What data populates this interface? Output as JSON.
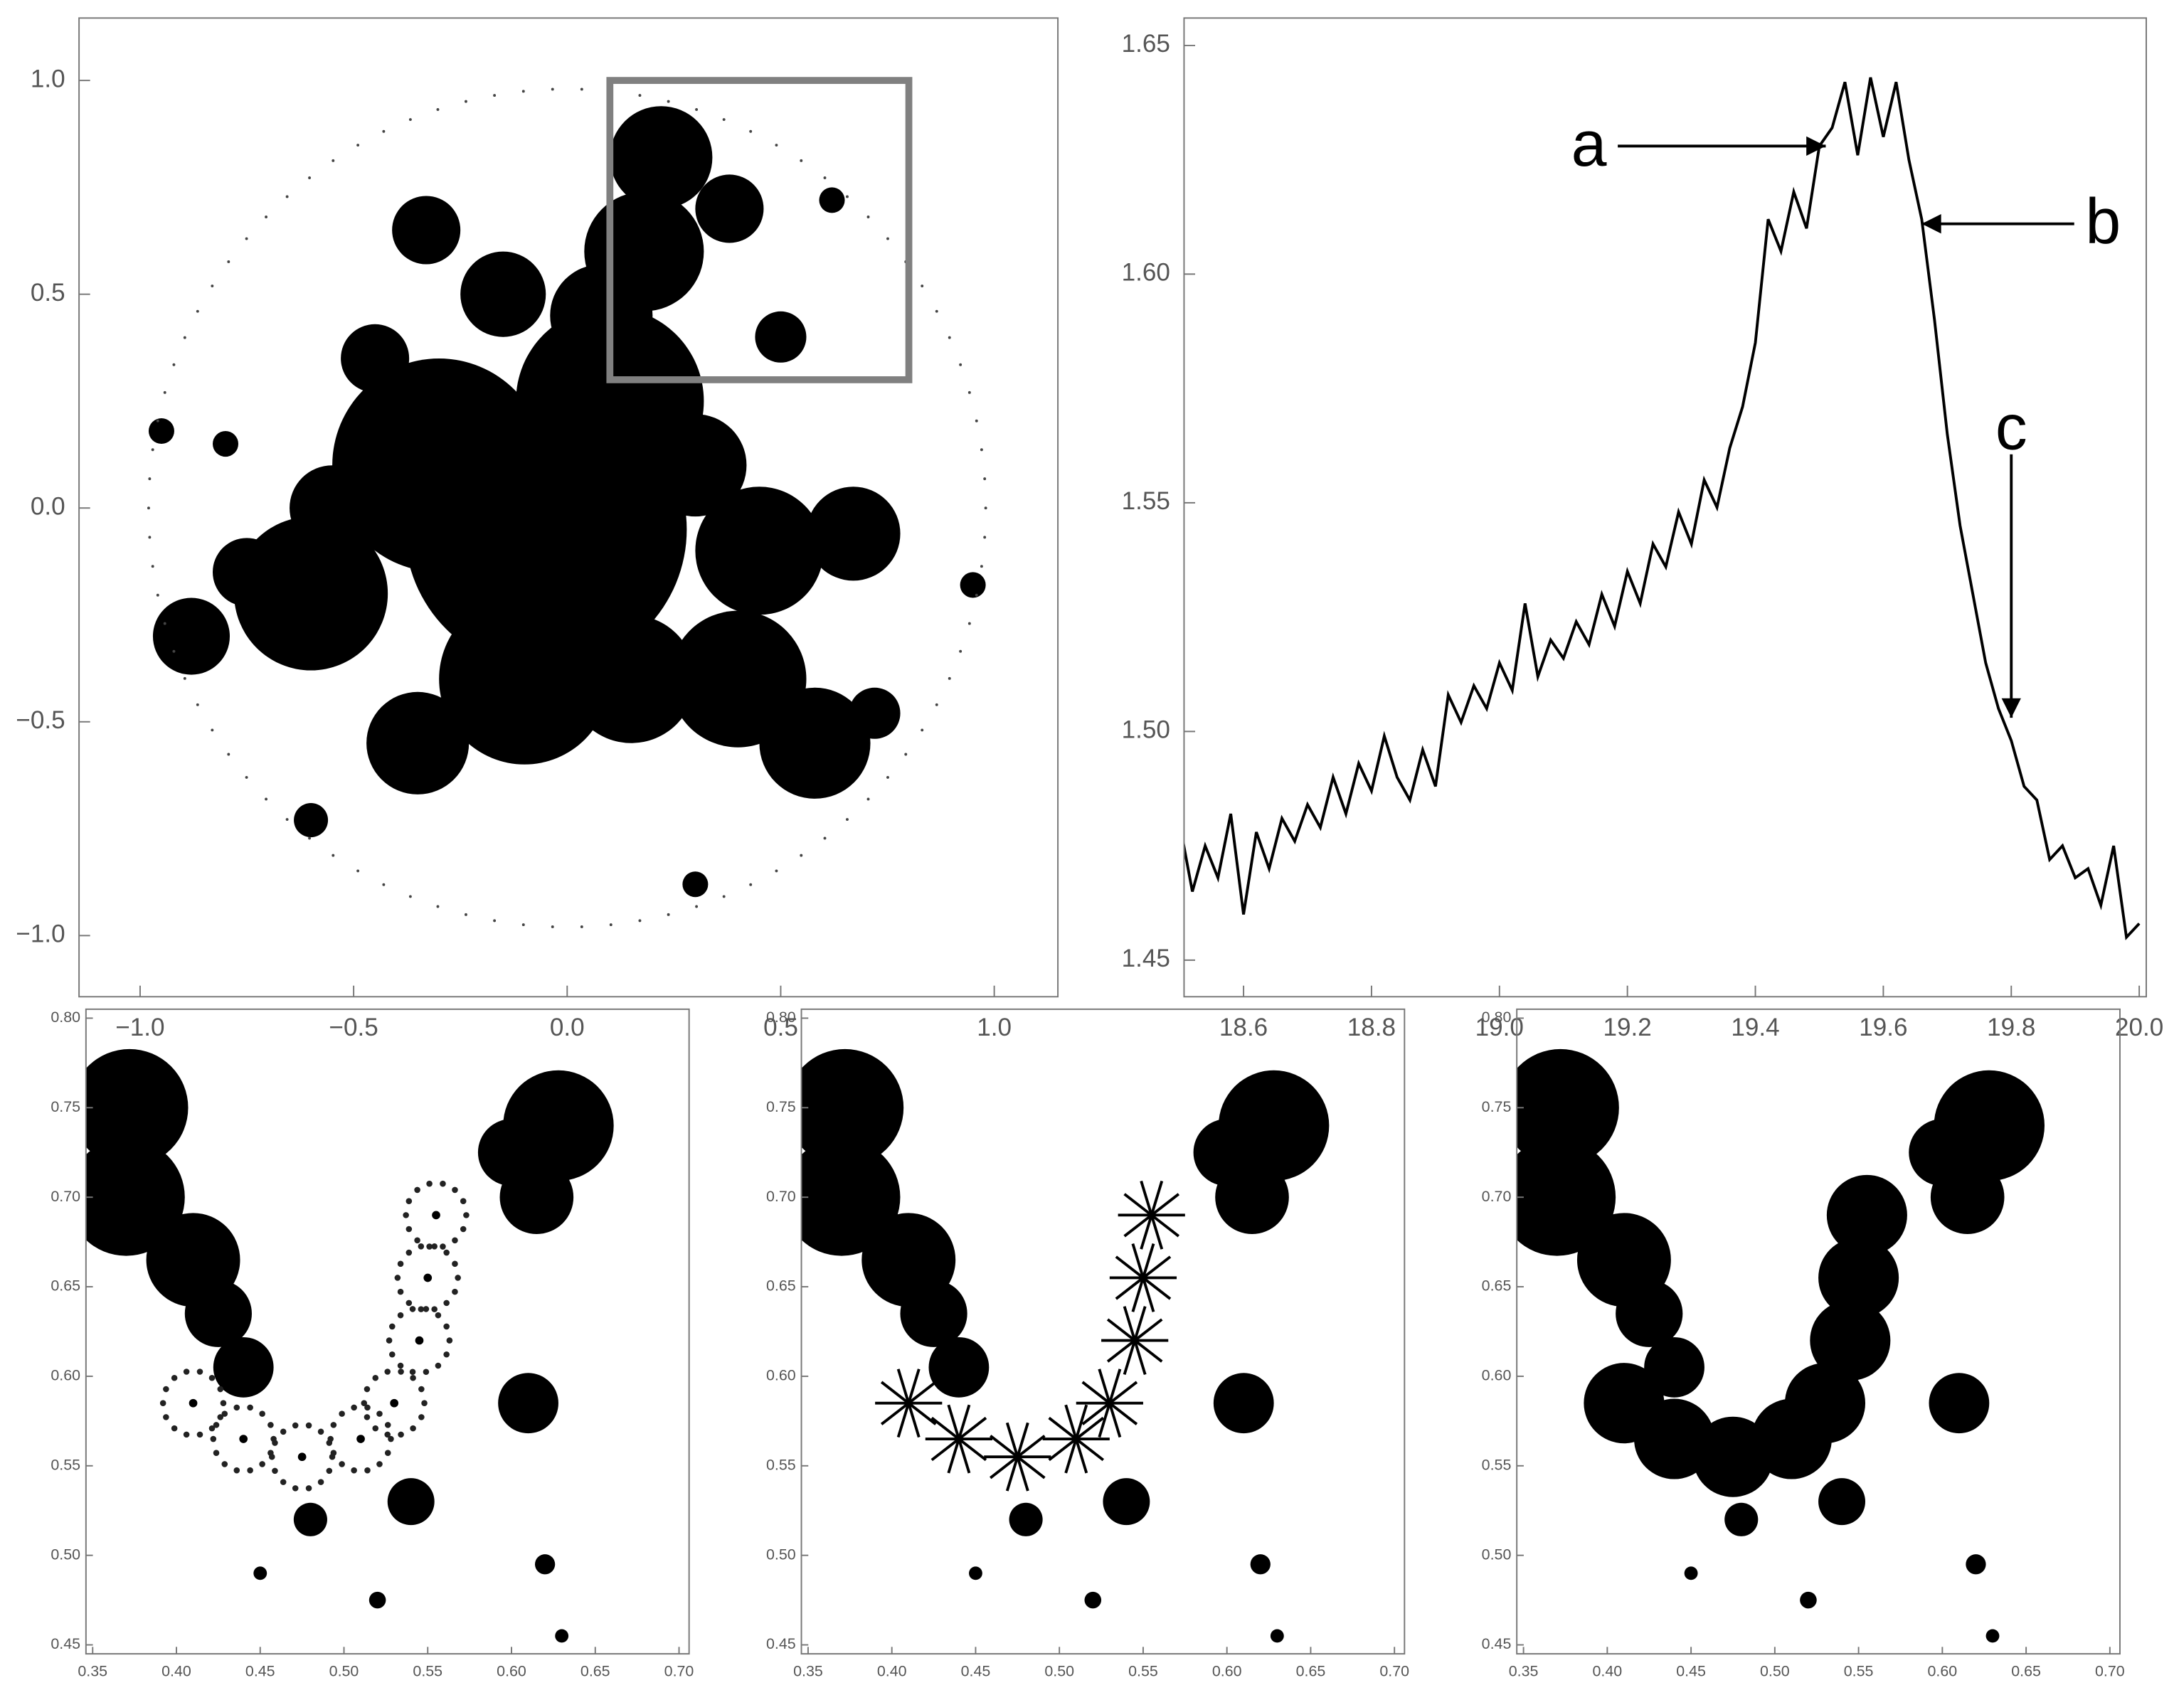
{
  "chart_data": [
    {
      "type": "image",
      "xlim": [
        -1.143,
        1.149
      ],
      "ylim": [
        -1.143,
        1.146
      ],
      "xticks": [
        {
          "value": -1.0,
          "label": "−1.0"
        },
        {
          "value": -0.5,
          "label": "−0.5"
        },
        {
          "value": 0,
          "label": "0.0"
        },
        0.5,
        {
          "value": 1.0,
          "label": "1.0"
        }
      ],
      "yticks": [
        {
          "value": -1.0,
          "label": "−1.0"
        },
        {
          "value": -0.5,
          "label": "−0.5"
        },
        {
          "value": 0,
          "label": "0.0"
        },
        0.5,
        {
          "value": 1.0,
          "label": "1.0"
        }
      ],
      "box": {
        "x": [
          0.1,
          0.8
        ],
        "y": [
          0.3,
          1.0
        ],
        "color": "#808080"
      }
    },
    {
      "type": "line",
      "color": "#000000",
      "xlim": [
        18.507,
        20.011
      ],
      "ylim": [
        1.442,
        1.656
      ],
      "xticks": [
        18.6,
        18.8,
        {
          "value": 19.0,
          "label": "19.0"
        },
        19.2,
        19.4,
        19.6,
        19.8,
        {
          "value": 20.0,
          "label": "20.0"
        }
      ],
      "yticks": [
        1.45,
        {
          "value": 1.5,
          "label": "1.50"
        },
        1.55,
        {
          "value": 1.6,
          "label": "1.60"
        },
        1.65
      ],
      "x": [
        18.5,
        18.52,
        18.54,
        18.56,
        18.58,
        18.6,
        18.62,
        18.64,
        18.66,
        18.68,
        18.7,
        18.72,
        18.74,
        18.76,
        18.78,
        18.8,
        18.82,
        18.84,
        18.86,
        18.88,
        18.9,
        18.92,
        18.94,
        18.96,
        18.98,
        19.0,
        19.02,
        19.04,
        19.06,
        19.08,
        19.1,
        19.12,
        19.14,
        19.16,
        19.18,
        19.2,
        19.22,
        19.24,
        19.26,
        19.28,
        19.3,
        19.32,
        19.34,
        19.36,
        19.38,
        19.4,
        19.42,
        19.44,
        19.46,
        19.48,
        19.5,
        19.52,
        19.54,
        19.56,
        19.58,
        19.6,
        19.62,
        19.64,
        19.66,
        19.68,
        19.7,
        19.72,
        19.74,
        19.76,
        19.78,
        19.8,
        19.82,
        19.84,
        19.86,
        19.88,
        19.9,
        19.92,
        19.94,
        19.96,
        19.98,
        20.0
      ],
      "values": [
        1.48,
        1.465,
        1.475,
        1.468,
        1.482,
        1.46,
        1.478,
        1.47,
        1.481,
        1.476,
        1.484,
        1.479,
        1.49,
        1.482,
        1.493,
        1.487,
        1.499,
        1.49,
        1.485,
        1.496,
        1.488,
        1.508,
        1.502,
        1.51,
        1.505,
        1.515,
        1.509,
        1.528,
        1.512,
        1.52,
        1.516,
        1.524,
        1.519,
        1.53,
        1.523,
        1.535,
        1.528,
        1.541,
        1.536,
        1.548,
        1.541,
        1.555,
        1.549,
        1.562,
        1.571,
        1.585,
        1.612,
        1.605,
        1.618,
        1.61,
        1.628,
        1.632,
        1.642,
        1.626,
        1.643,
        1.63,
        1.642,
        1.625,
        1.612,
        1.59,
        1.565,
        1.545,
        1.53,
        1.515,
        1.505,
        1.498,
        1.488,
        1.485,
        1.472,
        1.475,
        1.468,
        1.47,
        1.462,
        1.475,
        1.455,
        1.458
      ],
      "annotations": [
        {
          "text": "a",
          "x": 19.51,
          "y": 1.628
        },
        {
          "text": "b",
          "x": 19.66,
          "y": 1.611
        },
        {
          "text": "c",
          "x": 19.8,
          "y": 1.503
        }
      ]
    },
    {
      "type": "image",
      "xlim": [
        0.346,
        0.706
      ],
      "ylim": [
        0.445,
        0.805
      ],
      "xticks": [
        0.35,
        {
          "value": 0.4,
          "label": "0.40"
        },
        0.45,
        {
          "value": 0.5,
          "label": "0.50"
        },
        0.55,
        {
          "value": 0.6,
          "label": "0.60"
        },
        0.65,
        {
          "value": 0.7,
          "label": "0.70"
        }
      ],
      "yticks": [
        0.45,
        {
          "value": 0.5,
          "label": "0.50"
        },
        0.55,
        {
          "value": 0.6,
          "label": "0.60"
        },
        0.65,
        {
          "value": 0.7,
          "label": "0.70"
        },
        0.75,
        {
          "value": 0.8,
          "label": "0.80"
        }
      ]
    },
    {
      "type": "image",
      "xlim": [
        0.346,
        0.706
      ],
      "ylim": [
        0.445,
        0.805
      ],
      "xticks": [
        0.35,
        {
          "value": 0.4,
          "label": "0.40"
        },
        0.45,
        {
          "value": 0.5,
          "label": "0.50"
        },
        0.55,
        {
          "value": 0.6,
          "label": "0.60"
        },
        0.65,
        {
          "value": 0.7,
          "label": "0.70"
        }
      ],
      "yticks": [
        0.45,
        {
          "value": 0.5,
          "label": "0.50"
        },
        0.55,
        {
          "value": 0.6,
          "label": "0.60"
        },
        0.65,
        {
          "value": 0.7,
          "label": "0.70"
        },
        0.75,
        {
          "value": 0.8,
          "label": "0.80"
        }
      ]
    },
    {
      "type": "image",
      "xlim": [
        0.346,
        0.706
      ],
      "ylim": [
        0.445,
        0.805
      ],
      "xticks": [
        0.35,
        {
          "value": 0.4,
          "label": "0.40"
        },
        0.45,
        {
          "value": 0.5,
          "label": "0.50"
        },
        0.55,
        {
          "value": 0.6,
          "label": "0.60"
        },
        0.65,
        {
          "value": 0.7,
          "label": "0.70"
        }
      ],
      "yticks": [
        0.45,
        {
          "value": 0.5,
          "label": "0.50"
        },
        0.55,
        {
          "value": 0.6,
          "label": "0.60"
        },
        0.65,
        {
          "value": 0.7,
          "label": "0.70"
        },
        0.75,
        {
          "value": 0.8,
          "label": "0.80"
        }
      ]
    }
  ]
}
